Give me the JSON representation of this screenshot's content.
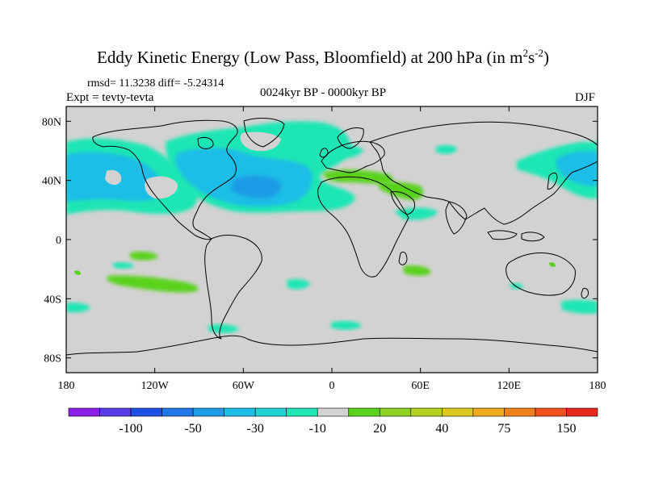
{
  "title": {
    "main": "Eddy Kinetic Energy (Low Pass, Bloomfield) at 200 hPa (in m",
    "sup1": "2",
    "mid": "s",
    "sup2": "-2",
    "end": ")"
  },
  "stats": "rmsd= 11.3238 diff= -5.24314",
  "expt": "Expt = tevty-tevta",
  "period": "0024kyr BP - 0000kyr BP",
  "season": "DJF",
  "axes": {
    "lon_ticks": [
      {
        "value": -180,
        "label": "180"
      },
      {
        "value": -120,
        "label": "120W"
      },
      {
        "value": -60,
        "label": "60W"
      },
      {
        "value": 0,
        "label": "0"
      },
      {
        "value": 60,
        "label": "60E"
      },
      {
        "value": 120,
        "label": "120E"
      },
      {
        "value": 180,
        "label": "180"
      }
    ],
    "lat_ticks": [
      {
        "value": 80,
        "label": "80N"
      },
      {
        "value": 40,
        "label": "40N"
      },
      {
        "value": 0,
        "label": "0"
      },
      {
        "value": -40,
        "label": "40S"
      },
      {
        "value": -80,
        "label": "80S"
      }
    ],
    "lon_range": [
      -180,
      180
    ],
    "lat_range": [
      -90,
      90
    ]
  },
  "colorbar": {
    "colors": [
      "#8c1fe6",
      "#5a3ce6",
      "#1e50e6",
      "#1e78e6",
      "#1e9be6",
      "#1ebde6",
      "#1ed2d2",
      "#1ee6b4",
      "#d2d2d2",
      "#5ad21e",
      "#8cd21e",
      "#b4d21e",
      "#dcc81e",
      "#f0aa1e",
      "#f0821e",
      "#f0501e",
      "#e6281e"
    ],
    "labels": [
      {
        "boundary": 2,
        "text": "-100"
      },
      {
        "boundary": 4,
        "text": "-50"
      },
      {
        "boundary": 6,
        "text": "-30"
      },
      {
        "boundary": 8,
        "text": "-10"
      },
      {
        "boundary": 10,
        "text": "20"
      },
      {
        "boundary": 12,
        "text": "40"
      },
      {
        "boundary": 14,
        "text": "75"
      },
      {
        "boundary": 16,
        "text": "150"
      }
    ]
  }
}
